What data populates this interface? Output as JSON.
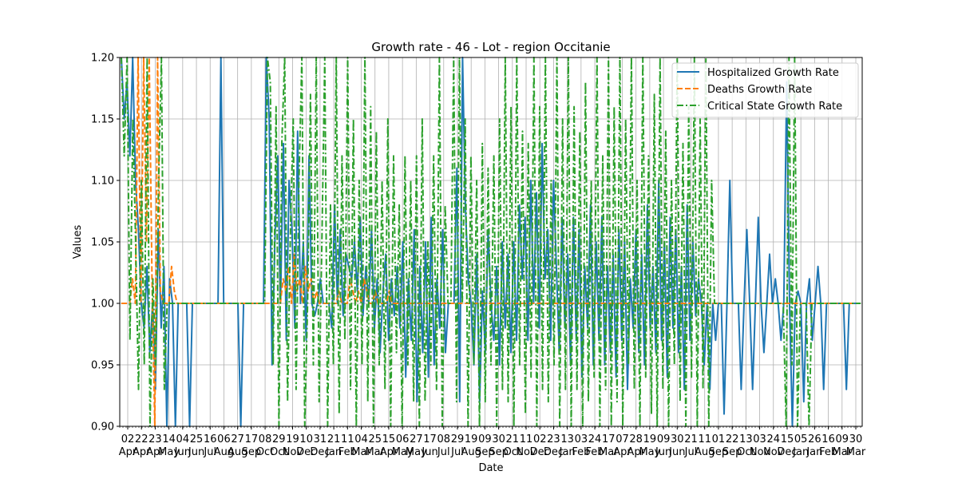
{
  "chart_data": {
    "type": "line",
    "title": "Growth rate - 46 - Lot - region Occitanie",
    "xlabel": "Date",
    "ylabel": "Values",
    "ylim": [
      0.9,
      1.2
    ],
    "yticks": [
      "0.90",
      "0.95",
      "1.00",
      "1.05",
      "1.10",
      "1.15",
      "1.20"
    ],
    "grid": true,
    "legend_position": "top-right",
    "xtick_labels": [
      {
        "day": "02",
        "month": "Apr"
      },
      {
        "day": "22",
        "month": "Apr"
      },
      {
        "day": "23",
        "month": "Apr"
      },
      {
        "day": "14",
        "month": "May"
      },
      {
        "day": "04",
        "month": "Jun"
      },
      {
        "day": "25",
        "month": "Jun"
      },
      {
        "day": "16",
        "month": "Jul"
      },
      {
        "day": "06",
        "month": "Aug"
      },
      {
        "day": "27",
        "month": "Aug"
      },
      {
        "day": "17",
        "month": "Sep"
      },
      {
        "day": "08",
        "month": "Oct"
      },
      {
        "day": "29",
        "month": "Oct"
      },
      {
        "day": "19",
        "month": "Nov"
      },
      {
        "day": "10",
        "month": "Dec"
      },
      {
        "day": "31",
        "month": "Dec"
      },
      {
        "day": "21",
        "month": "Jan"
      },
      {
        "day": "11",
        "month": "Feb"
      },
      {
        "day": "04",
        "month": "Mar"
      },
      {
        "day": "25",
        "month": "Mar"
      },
      {
        "day": "15",
        "month": "Apr"
      },
      {
        "day": "06",
        "month": "May"
      },
      {
        "day": "27",
        "month": "May"
      },
      {
        "day": "17",
        "month": "Jun"
      },
      {
        "day": "08",
        "month": "Jul"
      },
      {
        "day": "29",
        "month": "Jul"
      },
      {
        "day": "19",
        "month": "Aug"
      },
      {
        "day": "09",
        "month": "Sep"
      },
      {
        "day": "30",
        "month": "Sep"
      },
      {
        "day": "21",
        "month": "Oct"
      },
      {
        "day": "11",
        "month": "Nov"
      },
      {
        "day": "02",
        "month": "Dec"
      },
      {
        "day": "23",
        "month": "Dec"
      },
      {
        "day": "13",
        "month": "Jan"
      },
      {
        "day": "03",
        "month": "Feb"
      },
      {
        "day": "24",
        "month": "Feb"
      },
      {
        "day": "17",
        "month": "Mar"
      },
      {
        "day": "07",
        "month": "Apr"
      },
      {
        "day": "28",
        "month": "Apr"
      },
      {
        "day": "19",
        "month": "May"
      },
      {
        "day": "09",
        "month": "Jun"
      },
      {
        "day": "30",
        "month": "Jun"
      },
      {
        "day": "21",
        "month": "Jul"
      },
      {
        "day": "11",
        "month": "Aug"
      },
      {
        "day": "01",
        "month": "Sep"
      },
      {
        "day": "22",
        "month": "Sep"
      },
      {
        "day": "13",
        "month": "Oct"
      },
      {
        "day": "03",
        "month": "Nov"
      },
      {
        "day": "24",
        "month": "Nov"
      },
      {
        "day": "15",
        "month": "Dec"
      },
      {
        "day": "05",
        "month": "Jan"
      },
      {
        "day": "26",
        "month": "Jan"
      },
      {
        "day": "16",
        "month": "Feb"
      },
      {
        "day": "09",
        "month": "Mar"
      },
      {
        "day": "30",
        "month": "Mar"
      }
    ],
    "series": [
      {
        "name": "Hospitalized Growth Rate",
        "color": "#1f77b4",
        "style": "solid",
        "values": [
          1.2,
          1.15,
          1.18,
          1.12,
          1.2,
          1.1,
          1.06,
          1.0,
          0.98,
          1.03,
          0.96,
          1.0,
          0.93,
          1.06,
          0.98,
          1.03,
          0.9,
          1.02,
          1.0,
          0.9,
          1.0,
          1.0,
          1.0,
          1.0,
          0.9,
          1.0,
          1.0,
          1.0,
          1.0,
          1.0,
          1.0,
          1.0,
          1.0,
          1.0,
          1.0,
          1.2,
          1.0,
          1.0,
          1.0,
          1.0,
          1.0,
          1.0,
          0.9,
          1.0,
          1.0,
          1.0,
          1.0,
          1.0,
          1.0,
          1.0,
          1.0,
          1.2,
          1.15,
          0.95,
          1.05,
          1.12,
          1.0,
          1.13,
          0.97,
          1.1,
          1.06,
          0.98,
          1.14,
          1.0,
          1.05,
          0.97,
          1.12,
          1.0,
          0.99,
          1.0,
          1.02,
          1.0,
          1.0,
          1.0,
          0.98,
          1.08,
          1.0,
          1.06,
          0.99,
          1.04,
          1.03,
          1.02,
          1.05,
          1.01,
          1.07,
          0.99,
          1.03,
          1.0,
          1.06,
          0.98,
          1.02,
          0.96,
          1.01,
          1.04,
          0.97,
          1.02,
          0.99,
          1.03,
          0.98,
          1.05,
          0.94,
          1.02,
          0.97,
          1.06,
          0.92,
          1.03,
          0.96,
          1.05,
          0.94,
          1.07,
          0.95,
          1.02,
          0.98,
          1.06,
          0.96,
          1.0,
          1.0,
          1.0,
          1.11,
          0.92,
          1.2,
          1.08,
          1.02,
          1.0,
          0.95,
          1.04,
          0.92,
          1.01,
          0.96,
          1.06,
          1.0,
          0.97,
          1.03,
          0.95,
          1.05,
          0.98,
          1.04,
          0.96,
          1.05,
          0.97,
          1.08,
          1.02,
          1.07,
          0.97,
          1.1,
          1.0,
          1.09,
          0.98,
          1.13,
          1.02,
          1.06,
          0.97,
          1.1,
          1.03,
          0.96,
          1.07,
          0.98,
          1.04,
          0.95,
          1.07,
          0.97,
          1.06,
          0.94,
          1.03,
          0.98,
          1.08,
          0.95,
          1.05,
          0.97,
          1.07,
          0.95,
          1.03,
          0.96,
          1.04,
          0.94,
          1.06,
          0.97,
          1.05,
          0.93,
          1.02,
          0.98,
          1.06,
          0.96,
          1.04,
          0.95,
          1.08,
          0.98,
          1.03,
          0.96,
          1.1,
          0.97,
          1.05,
          0.94,
          1.07,
          0.98,
          1.06,
          0.96,
          1.03,
          0.93,
          1.08,
          0.97,
          1.05,
          0.99,
          1.02,
          1.0,
          0.95,
          1.0,
          0.93,
          1.0,
          0.97,
          1.0,
          1.0,
          0.91,
          1.0,
          1.1,
          1.0,
          1.0,
          1.0,
          0.93,
          1.0,
          1.06,
          1.0,
          0.93,
          1.0,
          1.07,
          1.0,
          0.96,
          1.0,
          1.04,
          1.0,
          1.02,
          1.0,
          0.97,
          1.0,
          1.18,
          1.0,
          0.9,
          1.0,
          1.01,
          1.0,
          0.92,
          1.0,
          1.02,
          0.97,
          1.0,
          1.03,
          1.0,
          0.93,
          1.0,
          1.0,
          1.0,
          1.0,
          1.0,
          1.0,
          1.0,
          0.93,
          1.0,
          1.0,
          1.0,
          1.0,
          1.0
        ]
      },
      {
        "name": "Deaths Growth Rate",
        "color": "#ff7f0e",
        "style": "dashed",
        "values": [
          1.0,
          1.0,
          1.0,
          1.0,
          1.02,
          1.0,
          1.2,
          1.0,
          1.2,
          1.05,
          1.2,
          1.02,
          0.9,
          1.2,
          1.01,
          1.0,
          1.0,
          1.0,
          1.03,
          1.01,
          1.0,
          1.0,
          1.0,
          1.0,
          1.0,
          1.0,
          1.0,
          1.0,
          1.0,
          1.0,
          1.0,
          1.0,
          1.0,
          1.0,
          1.0,
          1.0,
          1.0,
          1.0,
          1.0,
          1.0,
          1.0,
          1.0,
          1.0,
          1.0,
          1.0,
          1.0,
          1.0,
          1.0,
          1.0,
          1.0,
          1.0,
          1.0,
          1.0,
          1.0,
          1.0,
          1.0,
          1.0,
          1.0,
          1.02,
          1.01,
          1.03,
          1.0,
          1.04,
          1.01,
          1.02,
          1.0,
          1.03,
          1.01,
          1.02,
          1.0,
          1.01,
          1.0,
          1.0,
          1.0,
          1.0,
          1.0,
          1.0,
          1.0,
          1.01,
          1.0,
          1.0,
          1.0,
          1.02,
          1.01,
          1.0,
          1.01,
          1.0,
          1.02,
          1.01,
          1.0,
          1.0,
          1.01,
          1.0,
          1.0,
          1.0,
          1.0,
          1.01,
          1.0,
          1.0,
          1.0,
          1.0,
          1.0,
          1.0,
          1.0,
          1.0,
          1.0,
          1.0,
          1.0,
          1.0,
          1.0,
          1.0,
          1.0,
          1.0,
          1.0,
          1.0,
          1.0,
          1.0,
          1.0,
          1.0,
          1.0,
          1.0,
          1.0,
          1.0,
          1.0,
          1.0,
          1.0,
          1.0,
          1.0,
          1.0,
          1.0,
          1.0,
          1.0,
          1.0,
          1.0,
          1.0,
          1.0,
          1.0,
          1.0,
          1.0,
          1.0,
          1.0,
          1.0,
          1.0,
          1.0,
          1.0,
          1.0,
          1.0,
          1.0,
          1.0,
          1.0,
          1.0,
          1.0,
          1.0,
          1.0,
          1.0,
          1.0,
          1.0,
          1.0,
          1.0,
          1.0,
          1.0,
          1.0,
          1.0,
          1.0,
          1.0,
          1.0,
          1.0,
          1.0,
          1.0,
          1.0,
          1.0,
          1.0,
          1.0,
          1.0,
          1.0,
          1.0,
          1.0,
          1.0,
          1.0,
          1.0,
          1.0,
          1.0,
          1.0,
          1.0,
          1.0,
          1.0,
          1.0,
          1.0,
          1.0,
          1.0,
          1.0,
          1.0,
          1.0,
          1.0,
          1.0,
          1.0,
          1.0,
          1.0,
          1.0,
          1.0,
          1.0,
          1.0,
          1.0,
          1.0,
          1.0,
          1.0,
          1.0,
          1.0,
          1.0,
          1.0,
          1.0,
          1.0,
          1.0,
          1.0,
          1.0,
          1.0,
          1.0,
          1.0,
          1.0,
          1.0,
          1.0,
          1.0,
          1.0,
          1.0,
          1.0,
          1.0,
          1.0,
          1.0,
          1.0,
          1.0,
          1.0,
          1.0,
          1.0,
          1.0,
          1.0,
          1.0,
          1.0,
          1.0,
          1.0,
          1.0,
          1.0,
          1.0,
          1.0,
          1.0,
          1.0,
          1.0,
          1.0,
          1.0,
          1.0,
          1.0,
          1.0,
          1.0,
          1.0,
          1.0,
          1.0,
          1.0,
          1.0,
          1.0,
          1.0,
          1.0,
          1.0,
          1.0,
          1.0,
          1.0,
          1.0,
          1.0
        ]
      },
      {
        "name": "Critical State Growth Rate",
        "color": "#2ca02c",
        "style": "dashdot",
        "values": [
          1.2,
          1.12,
          1.2,
          0.97,
          1.15,
          1.05,
          0.93,
          1.1,
          0.95,
          1.2,
          0.9,
          1.02,
          0.95,
          1.1,
          1.2,
          0.93,
          1.0,
          1.0,
          1.0,
          1.0,
          1.0,
          1.0,
          1.0,
          1.0,
          1.0,
          1.0,
          1.0,
          1.0,
          1.0,
          1.0,
          1.0,
          1.0,
          1.0,
          1.0,
          1.0,
          1.0,
          1.0,
          1.0,
          1.0,
          1.0,
          1.0,
          1.0,
          1.0,
          1.0,
          1.0,
          1.0,
          1.0,
          1.0,
          1.0,
          1.0,
          1.0,
          1.2,
          1.18,
          0.95,
          1.16,
          0.9,
          1.13,
          1.2,
          0.92,
          1.06,
          1.15,
          0.93,
          1.1,
          1.2,
          0.9,
          1.0,
          1.17,
          0.95,
          1.2,
          0.92,
          1.05,
          1.2,
          0.9,
          1.08,
          0.95,
          1.2,
          0.91,
          1.12,
          0.97,
          1.2,
          0.93,
          1.15,
          0.9,
          1.1,
          0.95,
          1.2,
          0.92,
          1.16,
          0.9,
          1.14,
          0.95,
          1.1,
          0.93,
          1.15,
          0.9,
          1.12,
          0.96,
          1.08,
          0.9,
          1.12,
          0.95,
          1.1,
          0.92,
          1.12,
          0.9,
          1.15,
          0.92,
          1.05,
          0.95,
          1.12,
          0.93,
          1.2,
          0.9,
          1.08,
          1.0,
          1.0,
          1.2,
          0.92,
          1.2,
          1.0,
          1.15,
          0.9,
          1.12,
          0.95,
          1.1,
          0.9,
          1.13,
          0.92,
          1.11,
          0.95,
          1.12,
          0.9,
          1.15,
          0.93,
          1.2,
          0.92,
          1.16,
          0.9,
          1.2,
          0.95,
          1.14,
          0.91,
          1.13,
          0.94,
          1.2,
          0.9,
          1.16,
          0.93,
          1.2,
          0.92,
          1.1,
          0.95,
          1.2,
          0.9,
          1.15,
          0.93,
          1.2,
          0.9,
          1.16,
          0.93,
          1.14,
          0.9,
          1.18,
          0.92,
          1.1,
          0.94,
          1.2,
          0.9,
          1.12,
          0.93,
          1.2,
          0.9,
          1.16,
          0.92,
          1.2,
          0.9,
          1.15,
          0.95,
          1.2,
          0.93,
          1.1,
          0.9,
          1.2,
          0.94,
          1.12,
          0.91,
          1.17,
          0.9,
          1.2,
          0.93,
          1.14,
          0.9,
          1.1,
          0.95,
          1.2,
          0.92,
          1.13,
          0.9,
          1.16,
          0.94,
          1.2,
          0.9,
          1.15,
          0.93,
          1.2,
          0.9,
          1.1,
          1.0,
          1.0,
          1.0,
          1.0,
          1.0,
          1.0,
          1.0,
          1.0,
          1.0,
          1.0,
          1.0,
          1.0,
          1.0,
          1.0,
          1.0,
          1.0,
          1.0,
          1.0,
          1.0,
          1.0,
          1.0,
          1.0,
          1.0,
          1.0,
          1.0,
          0.9,
          1.2,
          0.95,
          1.2,
          0.9,
          1.0,
          1.0,
          1.0,
          0.9,
          1.0,
          1.0,
          1.0,
          1.0,
          1.0,
          1.0,
          1.0,
          1.0,
          1.0,
          1.0,
          1.0,
          1.0,
          1.0,
          1.0,
          1.0,
          1.0,
          1.0,
          1.0
        ]
      }
    ]
  }
}
